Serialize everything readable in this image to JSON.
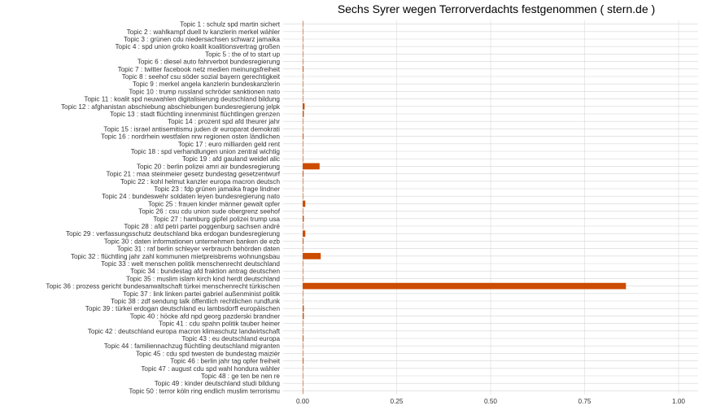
{
  "chart_data": {
    "type": "bar",
    "orientation": "horizontal",
    "title": "Sechs Syrer wegen Terrorverdachts festgenommen ( stern.de )",
    "xlabel": "",
    "ylabel": "",
    "xlim": [
      0,
      1
    ],
    "x_ticks": [
      "0.00",
      "0.25",
      "0.50",
      "0.75",
      "1.00"
    ],
    "bar_color": "#cc4c02",
    "grid": true,
    "categories": [
      "Topic 1 : schulz spd martin sichert",
      "Topic 2 : wahlkampf duell tv kanzlerin merkel wähler",
      "Topic 3 : grünen cdu niedersachsen schwarz jamaika",
      "Topic 4 : spd union groko koalit koalitionsvertrag großen",
      "Topic 5 : the of to start up",
      "Topic 6 : diesel auto fahrverbot bundesregierung",
      "Topic 7 : twitter facebook netz medien meinungsfreiheit",
      "Topic 8 : seehof csu söder sozial bayern gerechtigkeit",
      "Topic 9 : merkel angela kanzlerin bundeskanzlerin",
      "Topic 10 : trump russland schröder sanktionen nato",
      "Topic 11 : koalit spd neuwahlen digitalisierung deutschland bildung",
      "Topic 12 : afghanistan abschiebung abschiebungen bundesregierung jelpk",
      "Topic 13 : stadt flüchtling innenminist flüchtlingen grenzen",
      "Topic 14 : prozent spd afd theurer jahr",
      "Topic 15 : israel antisemitismu juden dr europarat demokrati",
      "Topic 16 : nordrhein westfalen nrw regionen osten ländlichen",
      "Topic 17 : euro milliarden geld rent",
      "Topic 18 : spd verhandlungen union zentral wichtig",
      "Topic 19 : afd gauland weidel alic",
      "Topic 20 : berlin polizei amri air bundesregierung",
      "Topic 21 : maa steinmeier gesetz bundestag gesetzentwurf",
      "Topic 22 : kohl helmut kanzler europa macron deutsch",
      "Topic 23 : fdp grünen jamaika frage lindner",
      "Topic 24 : bundeswehr soldaten leyen bundesregierung nato",
      "Topic 25 : frauen kinder männer gewalt opfer",
      "Topic 26 : csu cdu union sude obergrenz seehof",
      "Topic 27 : hamburg gipfel polizei trump usa",
      "Topic 28 : afd petri partei poggenburg sachsen andré",
      "Topic 29 : verfassungsschutz deutschland bka erdogan bundesregierung",
      "Topic 30 : daten informationen unternehmen banken de ezb",
      "Topic 31 : raf berlin schleyer verbrauch behörden daten",
      "Topic 32 : flüchtling jahr zahl kommunen mietpreisbrems wohnungsbau",
      "Topic 33 : welt menschen politik menschenrecht deutschland",
      "Topic 34 : bundestag afd fraktion antrag deutschen",
      "Topic 35 : muslim islam kirch kind herdt deutschland",
      "Topic 36 : prozess gericht bundesanwaltschaft türkei menschenrecht türkischen",
      "Topic 37 : link linken partei gabriel außenminist politik",
      "Topic 38 : zdf sendung talk öffentlich rechtlichen rundfunk",
      "Topic 39 : türkei erdogan deutschland eu lambsdorff europäischen",
      "Topic 40 : höcke afd npd georg pazderski brandner",
      "Topic 41 : cdu spahn politik tauber heiner",
      "Topic 42 : deutschland europa macron klimaschutz landwirtschaft",
      "Topic 43 : eu deutschland europa",
      "Topic 44 : familiennachzug flüchtling deutschland migranten",
      "Topic 45 : cdu spd twesten de bundestag maizièr",
      "Topic 46 : berlin jahr tag opfer freiheit",
      "Topic 47 : august cdu spd wahl hondura wähler",
      "Topic 48 : ge ten be nen re",
      "Topic 49 : kinder deutschland studi bildung",
      "Topic 50 : terror köln ring endlich muslim terrorismu"
    ],
    "values": [
      0.0005,
      0.0005,
      0.0005,
      0.0005,
      0.0002,
      0.0005,
      0.002,
      0.0005,
      0.0005,
      0.0005,
      0.0005,
      0.005,
      0.003,
      0.0005,
      0.0005,
      0.002,
      0.001,
      0.0005,
      0.0005,
      0.045,
      0.002,
      0.0005,
      0.0005,
      0.001,
      0.007,
      0.0005,
      0.003,
      0.001,
      0.007,
      0.002,
      0.001,
      0.048,
      0.001,
      0.0005,
      0.0005,
      0.86,
      0.0005,
      0.0005,
      0.003,
      0.003,
      0.0005,
      0.0005,
      0.002,
      0.0005,
      0.0005,
      0.002,
      0.0005,
      0.0002,
      0.0005,
      0.0005
    ]
  }
}
